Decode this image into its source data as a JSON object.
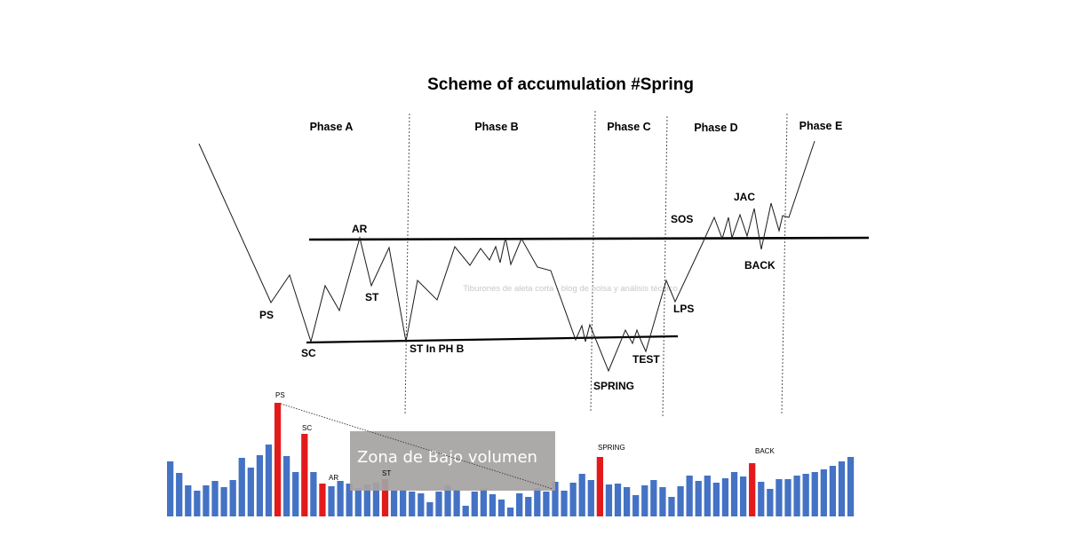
{
  "title": "Scheme of accumulation #Spring",
  "phases": [
    "Phase A",
    "Phase B",
    "Phase C",
    "Phase D",
    "Phase E"
  ],
  "price_labels": {
    "ps": "PS",
    "sc": "SC",
    "ar": "AR",
    "st": "ST",
    "st_in_ph_b": "ST In PH B",
    "spring": "SPRING",
    "test": "TEST",
    "lps": "LPS",
    "sos": "SOS",
    "jac": "JAC",
    "back": "BACK"
  },
  "watermark": "Tiburones de aleta corta - blog de bolsa y análisis técnico",
  "volume_zone_label": "Zona de Bajo volumen",
  "volume_labels": {
    "ps": "PS",
    "sc": "SC",
    "ar": "AR",
    "st": "ST",
    "spring": "SPRING",
    "back": "BACK"
  },
  "colors": {
    "normal_bar": "#4472c4",
    "highlight_bar": "#e31a1c",
    "zone_fill": "#a6a3a3",
    "lines": "#000000"
  },
  "volume_bars": [
    {
      "v": 62
    },
    {
      "v": 49
    },
    {
      "v": 35
    },
    {
      "v": 29
    },
    {
      "v": 35
    },
    {
      "v": 40
    },
    {
      "v": 33
    },
    {
      "v": 41
    },
    {
      "v": 66
    },
    {
      "v": 55
    },
    {
      "v": 69
    },
    {
      "v": 81
    },
    {
      "v": 128,
      "hl": true,
      "label": "ps"
    },
    {
      "v": 68
    },
    {
      "v": 50
    },
    {
      "v": 93,
      "hl": true,
      "label": "sc"
    },
    {
      "v": 50
    },
    {
      "v": 37,
      "hl": true,
      "label": "ar"
    },
    {
      "v": 34
    },
    {
      "v": 40
    },
    {
      "v": 37
    },
    {
      "v": 32
    },
    {
      "v": 36
    },
    {
      "v": 38
    },
    {
      "v": 42,
      "hl": true,
      "label": "st"
    },
    {
      "v": 29
    },
    {
      "v": 30
    },
    {
      "v": 28
    },
    {
      "v": 26
    },
    {
      "v": 16
    },
    {
      "v": 28
    },
    {
      "v": 35
    },
    {
      "v": 30
    },
    {
      "v": 12
    },
    {
      "v": 28
    },
    {
      "v": 31
    },
    {
      "v": 25
    },
    {
      "v": 19
    },
    {
      "v": 10
    },
    {
      "v": 26
    },
    {
      "v": 22
    },
    {
      "v": 32
    },
    {
      "v": 28
    },
    {
      "v": 39
    },
    {
      "v": 29
    },
    {
      "v": 38
    },
    {
      "v": 48
    },
    {
      "v": 41
    },
    {
      "v": 67,
      "hl": true,
      "label": "spring"
    },
    {
      "v": 36
    },
    {
      "v": 37
    },
    {
      "v": 33
    },
    {
      "v": 24
    },
    {
      "v": 35
    },
    {
      "v": 41
    },
    {
      "v": 33
    },
    {
      "v": 22
    },
    {
      "v": 34
    },
    {
      "v": 46
    },
    {
      "v": 40
    },
    {
      "v": 46
    },
    {
      "v": 38
    },
    {
      "v": 43
    },
    {
      "v": 50
    },
    {
      "v": 45
    },
    {
      "v": 60,
      "hl": true,
      "label": "back"
    },
    {
      "v": 39
    },
    {
      "v": 31
    },
    {
      "v": 42
    },
    {
      "v": 42
    },
    {
      "v": 46
    },
    {
      "v": 48
    },
    {
      "v": 50
    },
    {
      "v": 53
    },
    {
      "v": 57
    },
    {
      "v": 62
    },
    {
      "v": 67
    }
  ]
}
